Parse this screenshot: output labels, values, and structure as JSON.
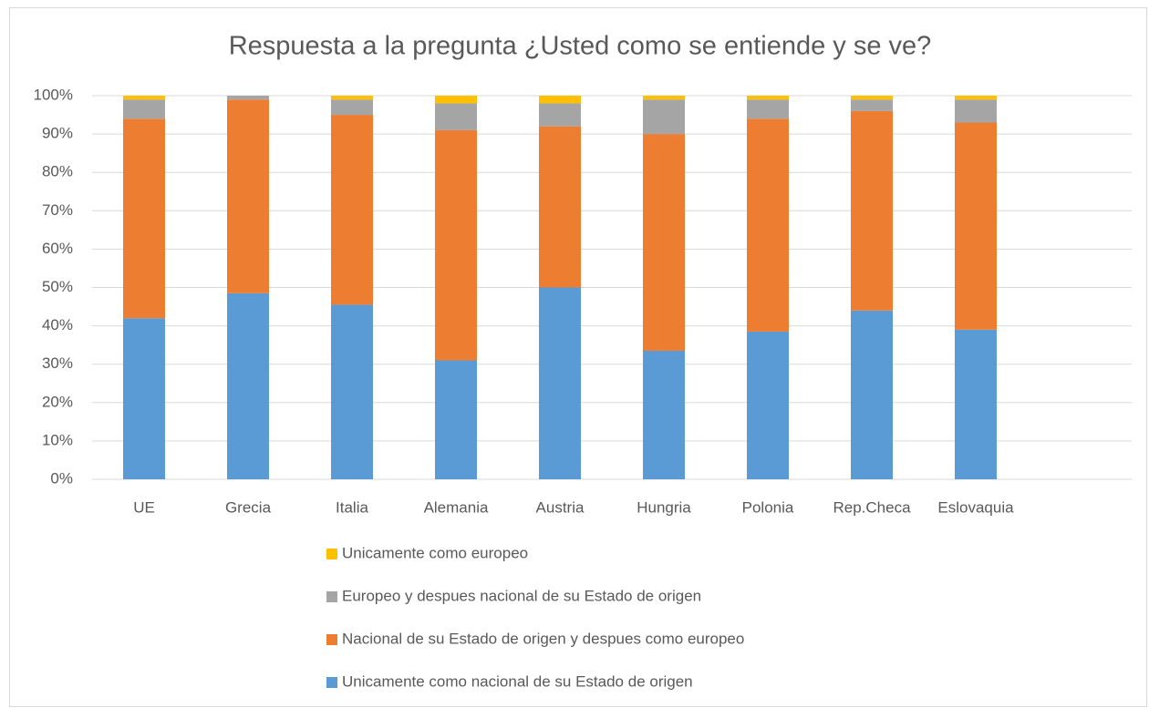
{
  "chart_data": {
    "type": "stacked_bar",
    "title": "Respuesta a la pregunta ¿Usted como se entiende y se ve?",
    "categories": [
      "UE",
      "Grecia",
      "Italia",
      "Alemania",
      "Austria",
      "Hungria",
      "Polonia",
      "Rep.Checa",
      "Eslovaquia",
      null
    ],
    "series": [
      {
        "name": "Unicamente como nacional de su Estado de origen",
        "color": "#5b9bd5",
        "values": [
          42,
          48.5,
          45.5,
          31,
          50,
          33.5,
          38.5,
          44,
          39,
          null
        ]
      },
      {
        "name": "Nacional de su Estado de origen y despues como europeo",
        "color": "#ed7d31",
        "values": [
          52,
          50.5,
          49.5,
          60,
          42,
          56.5,
          55.5,
          52,
          54,
          null
        ]
      },
      {
        "name": "Europeo y despues nacional de su Estado de origen",
        "color": "#a5a5a5",
        "values": [
          5,
          1,
          4,
          7,
          6,
          9,
          5,
          3,
          6,
          null
        ]
      },
      {
        "name": "Unicamente como europeo",
        "color": "#ffc000",
        "values": [
          1,
          0,
          1,
          2,
          2,
          1,
          1,
          1,
          1,
          null
        ]
      }
    ],
    "ylim": [
      0,
      100
    ],
    "yticks": [
      {
        "value": 0,
        "label": "0%"
      },
      {
        "value": 10,
        "label": "10%"
      },
      {
        "value": 20,
        "label": "20%"
      },
      {
        "value": 30,
        "label": "30%"
      },
      {
        "value": 40,
        "label": "40%"
      },
      {
        "value": 50,
        "label": "50%"
      },
      {
        "value": 60,
        "label": "60%"
      },
      {
        "value": 70,
        "label": "70%"
      },
      {
        "value": 80,
        "label": "80%"
      },
      {
        "value": 90,
        "label": "90%"
      },
      {
        "value": 100,
        "label": "100%"
      }
    ],
    "grid": true,
    "legend": "bottom"
  }
}
